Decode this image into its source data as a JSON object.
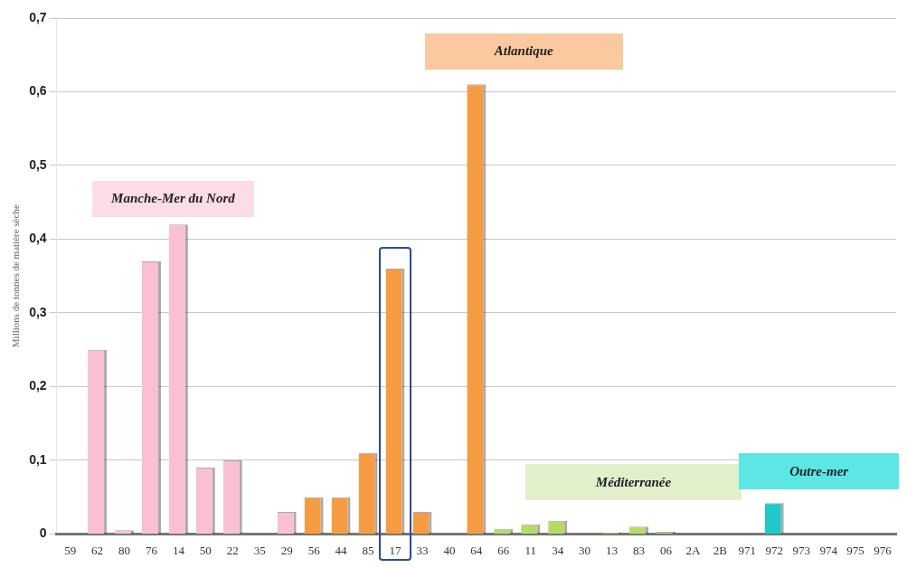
{
  "chart_data": {
    "type": "bar",
    "ylabel": "Millions de tonnes de matière sèche",
    "categories": [
      "59",
      "62",
      "80",
      "76",
      "14",
      "50",
      "22",
      "35",
      "29",
      "56",
      "44",
      "85",
      "17",
      "33",
      "40",
      "64",
      "66",
      "11",
      "34",
      "30",
      "13",
      "83",
      "06",
      "2A",
      "2B",
      "971",
      "972",
      "973",
      "974",
      "975",
      "976"
    ],
    "values": [
      null,
      0.25,
      0.005,
      0.37,
      0.42,
      0.09,
      0.1,
      null,
      0.03,
      0.05,
      0.05,
      0.11,
      0.36,
      0.03,
      null,
      0.61,
      0.007,
      0.013,
      0.018,
      null,
      0.002,
      0.01,
      0.003,
      null,
      null,
      null,
      0.042,
      null,
      null,
      null,
      null
    ],
    "colors": [
      "#f9bfd2",
      "#f9bfd2",
      "#f9bfd2",
      "#f9bfd2",
      "#f9bfd2",
      "#f9bfd2",
      "#f9bfd2",
      "#f9bfd2",
      "#f9bfd2",
      "#f59c42",
      "#f59c42",
      "#f59c42",
      "#f59c42",
      "#f59c42",
      "#f59c42",
      "#f59c42",
      "#b4dc6a",
      "#b4dc6a",
      "#b4dc6a",
      "#b4dc6a",
      "#b4dc6a",
      "#b4dc6a",
      "#b4dc6a",
      "#b4dc6a",
      "#b4dc6a",
      "#1fc9c9",
      "#1fc9c9",
      "#1fc9c9",
      "#1fc9c9",
      "#1fc9c9",
      "#1fc9c9"
    ],
    "ylim": [
      0,
      0.7
    ],
    "yticks": [
      0,
      {
        "value": 0.1,
        "label": "0,1"
      },
      {
        "value": 0.2,
        "label": "0,2"
      },
      {
        "value": 0.3,
        "label": "0,3"
      },
      {
        "value": 0.4,
        "label": "0,4"
      },
      {
        "value": 0.5,
        "label": "0,5"
      },
      {
        "value": 0.6,
        "label": "0,6"
      },
      {
        "value": 0.7,
        "label": "0,7"
      }
    ],
    "grid": "y",
    "legend": false,
    "annotations": [
      "Manche-Mer du Nord",
      "Atlantique",
      "Méditerranée",
      "Outre-mer"
    ]
  }
}
